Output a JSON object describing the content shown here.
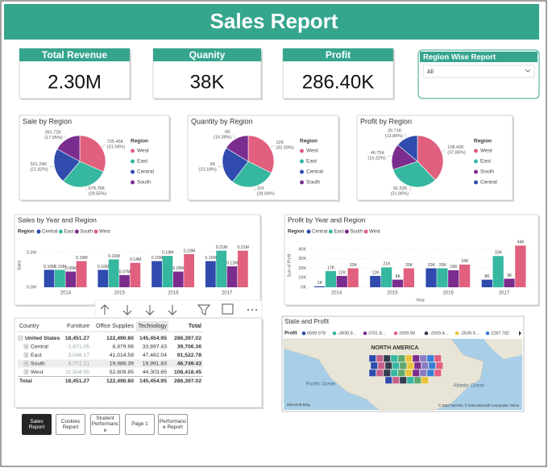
{
  "header": {
    "title": "Sales Report"
  },
  "kpis": [
    {
      "label": "Total Revenue",
      "value": "2.30M"
    },
    {
      "label": "Quanity",
      "value": "38K"
    },
    {
      "label": "Profit",
      "value": "286.40K"
    }
  ],
  "slicer": {
    "title": "Region Wise Report",
    "selection": "All"
  },
  "chart_data": [
    {
      "type": "pie",
      "title": "Sale by Region",
      "legend_title": "Region",
      "categories": [
        "West",
        "East",
        "Central",
        "South"
      ],
      "colors": [
        "#e0607e",
        "#36b7a0",
        "#2e4bad",
        "#7b2d8e"
      ],
      "values": [
        31.58,
        29.55,
        21.82,
        17.05
      ],
      "value_labels": [
        "725.46K (31.58%)",
        "678.78K (29.55%)",
        "501.24K (21.82%)",
        "391.72K (17.05%)"
      ]
    },
    {
      "type": "pie",
      "title": "Quantity by Region",
      "legend_title": "Region",
      "categories": [
        "West",
        "East",
        "Central",
        "South"
      ],
      "colors": [
        "#e0607e",
        "#36b7a0",
        "#2e4bad",
        "#7b2d8e"
      ],
      "values": [
        32.39,
        28.04,
        23.18,
        16.39
      ],
      "value_labels": [
        "12K (32.39%)",
        "11K (28.04%)",
        "9K (23.18%)",
        "6K (16.39%)"
      ]
    },
    {
      "type": "pie",
      "title": "Profit by Region",
      "legend_title": "Region",
      "categories": [
        "West",
        "East",
        "South",
        "Central"
      ],
      "colors": [
        "#e0607e",
        "#36b7a0",
        "#7b2d8e",
        "#2e4bad"
      ],
      "values": [
        37.86,
        31.96,
        16.32,
        13.86
      ],
      "value_labels": [
        "108.42K (37.86%)",
        "91.52K (31.96%)",
        "46.75K (16.32%)",
        "39.71K (13.86%)"
      ]
    },
    {
      "type": "bar",
      "title": "Sales by Year and Region",
      "legend_title": "Region",
      "y_label": "Sales",
      "categories": [
        "2014",
        "2015",
        "2016",
        "2017"
      ],
      "ylim": [
        0,
        250000
      ],
      "yticks": [
        {
          "value": 0,
          "label": "0.0M"
        },
        {
          "value": 200000,
          "label": "0.2M"
        }
      ],
      "series": [
        {
          "name": "Central",
          "color": "#2e4bad",
          "values": [
            100000,
            100000,
            150000,
            150000
          ],
          "value_labels": [
            "0.10M",
            "0.10M",
            "0.15M",
            "0.15M"
          ]
        },
        {
          "name": "East",
          "color": "#36b7a0",
          "values": [
            100000,
            160000,
            180000,
            210000
          ],
          "value_labels": [
            "0.10M",
            "0.16M",
            "0.18M",
            "0.21M"
          ]
        },
        {
          "name": "South",
          "color": "#7b2d8e",
          "values": [
            90000,
            70000,
            90000,
            120000
          ],
          "value_labels": [
            "0.09M",
            "0.07M",
            "0.09M",
            "0.12M"
          ]
        },
        {
          "name": "West",
          "color": "#e0607e",
          "values": [
            150000,
            140000,
            190000,
            210000
          ],
          "value_labels": [
            "0.15M",
            "0.14M",
            "0.19M",
            "0.21M"
          ]
        }
      ]
    },
    {
      "type": "bar",
      "title": "Profit by Year and Region",
      "legend_title": "Region",
      "y_label": "Sum of Profit",
      "x_label": "Year",
      "categories": [
        "2014",
        "2015",
        "2016",
        "2017"
      ],
      "ylim": [
        0,
        46000
      ],
      "yticks": [
        {
          "value": 0,
          "label": "0K"
        },
        {
          "value": 10000,
          "label": "10K"
        },
        {
          "value": 20000,
          "label": "20K"
        },
        {
          "value": 30000,
          "label": "30K"
        },
        {
          "value": 40000,
          "label": "40K"
        }
      ],
      "series": [
        {
          "name": "Central",
          "color": "#2e4bad",
          "values": [
            1000,
            12000,
            20000,
            8000
          ],
          "value_labels": [
            "1K",
            "12K",
            "20K",
            "8K"
          ]
        },
        {
          "name": "East",
          "color": "#36b7a0",
          "values": [
            17000,
            21000,
            20000,
            33000
          ],
          "value_labels": [
            "17K",
            "21K",
            "20K",
            "33K"
          ]
        },
        {
          "name": "South",
          "color": "#7b2d8e",
          "values": [
            12000,
            8000,
            18000,
            9000
          ],
          "value_labels": [
            "12K",
            "8K",
            "18K",
            "9K"
          ]
        },
        {
          "name": "West",
          "color": "#e0607e",
          "values": [
            20000,
            20000,
            24000,
            44000
          ],
          "value_labels": [
            "20K",
            "20K",
            "24K",
            "44K"
          ]
        }
      ]
    }
  ],
  "table": {
    "columns": [
      "Country",
      "Furniture",
      "Office Supplies",
      "Technology",
      "Total"
    ],
    "rows": [
      [
        "United States",
        "18,451.27",
        "122,490.80",
        "145,454.95",
        "286,397.02"
      ],
      [
        "Central",
        "-2,871.05",
        "8,879.96",
        "33,697.43",
        "39,706.36"
      ],
      [
        "East",
        "3,046.17",
        "41,014.58",
        "47,462.04",
        "91,522.78"
      ],
      [
        "South",
        "6,771.21",
        "19,986.39",
        "19,991.83",
        "46,749.43"
      ],
      [
        "West",
        "11,504.95",
        "52,609.85",
        "44,303.65",
        "108,418.45"
      ],
      [
        "Total",
        "18,451.27",
        "122,490.80",
        "145,454.95",
        "286,397.02"
      ]
    ]
  },
  "map": {
    "title": "State and Profit",
    "legend_title": "Profit",
    "legend_items": [
      {
        "label": "6599.978",
        "color": "#2e4bad"
      },
      {
        "label": "-3839.9...",
        "color": "#36b7a0"
      },
      {
        "label": "3701.8...",
        "color": "#7b2d8e"
      },
      {
        "label": "3399.98",
        "color": "#e0607e"
      },
      {
        "label": "-2929.4...",
        "color": "#333d4f"
      },
      {
        "label": "-2639.9...",
        "color": "#e8c33a"
      },
      {
        "label": "2287.782",
        "color": "#3a7fd5"
      }
    ],
    "continent": "NORTH AMERICA",
    "oceans": [
      "Pacific Ocean",
      "Atlantic Ocean"
    ],
    "provider": "Microsoft Bing",
    "copyright": "© 2022 TomTom, © 2022 Microsoft Corporation  Terms"
  },
  "nav": [
    "Sales Report",
    "Cookies Report",
    "Student Performance",
    "Page 1",
    "Performance Report"
  ]
}
